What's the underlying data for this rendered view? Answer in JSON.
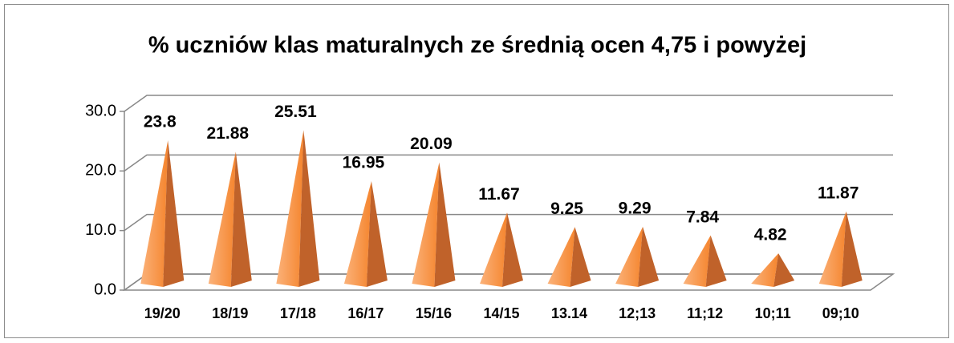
{
  "chart_data": {
    "type": "pyramid",
    "title": "% uczniów klas maturalnych ze średnią ocen 4,75 i powyżej",
    "categories": [
      "19/20",
      "18/19",
      "17/18",
      "16/17",
      "15/16",
      "14/15",
      "13.14",
      "12;13",
      "11;12",
      "10;11",
      "09;10"
    ],
    "values": [
      23.8,
      21.88,
      25.51,
      16.95,
      20.09,
      11.67,
      9.25,
      9.29,
      7.84,
      4.82,
      11.87
    ],
    "color": "#f79646",
    "ylim": [
      0,
      30
    ],
    "yticks": [
      {
        "value": 0,
        "label": "0.0"
      },
      {
        "value": 10,
        "label": "10.0"
      },
      {
        "value": 20,
        "label": "20.0"
      },
      {
        "value": 30,
        "label": "30.0"
      }
    ],
    "grid": true
  }
}
